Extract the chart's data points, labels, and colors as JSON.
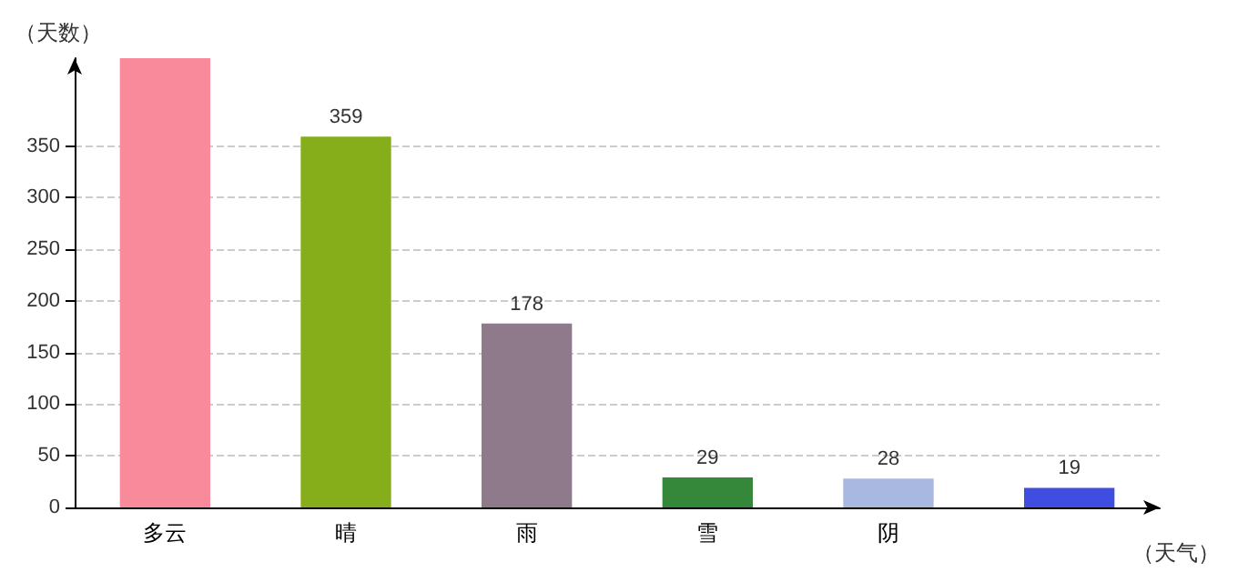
{
  "chart_data": {
    "type": "bar",
    "xlabel": "（天气）",
    "ylabel": "（天数）",
    "categories": [
      "多云",
      "晴",
      "雨",
      "雪",
      "阴",
      null
    ],
    "values": [
      435,
      359,
      178,
      29,
      28,
      19
    ],
    "value_labels": [
      null,
      "359",
      "178",
      "29",
      "28",
      "19"
    ],
    "colors": [
      "#f98a9b",
      "#86ae1a",
      "#8f7a8c",
      "#35873a",
      "#a9b8e0",
      "#3f4ee0"
    ],
    "ylim": [
      0,
      435
    ],
    "yticks": [
      0,
      50,
      100,
      150,
      200,
      250,
      300,
      350
    ],
    "grid": "y"
  }
}
